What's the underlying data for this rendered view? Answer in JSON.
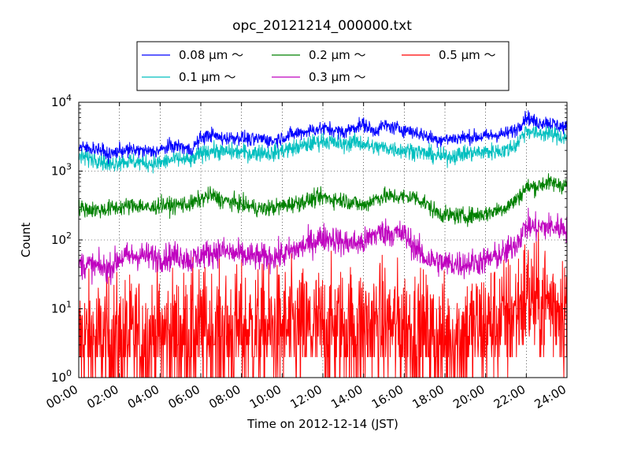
{
  "chart_data": {
    "type": "line",
    "title": "opc_20121214_000000.txt",
    "xlabel": "Time on 2012-12-14 (JST)",
    "ylabel": "Count",
    "x_ticks": [
      "00:00",
      "02:00",
      "04:00",
      "06:00",
      "08:00",
      "10:00",
      "12:00",
      "14:00",
      "16:00",
      "18:00",
      "20:00",
      "22:00",
      "24:00"
    ],
    "xlim_hours": [
      0,
      24
    ],
    "yscale": "log",
    "ylim": [
      1,
      10000
    ],
    "y_ticks": [
      {
        "base": "10",
        "exp": "0"
      },
      {
        "base": "10",
        "exp": "1"
      },
      {
        "base": "10",
        "exp": "2"
      },
      {
        "base": "10",
        "exp": "3"
      },
      {
        "base": "10",
        "exp": "4"
      }
    ],
    "grid": true,
    "legend_position": "top-center",
    "series": [
      {
        "name": "0.08 μm ～",
        "color": "#0000ff",
        "noise": 0.05,
        "hours": [
          0,
          1,
          1.5,
          2,
          3,
          3.5,
          4,
          4.5,
          5,
          5.5,
          6,
          6.5,
          7,
          8,
          8.5,
          9,
          9.5,
          10,
          11,
          12,
          12.5,
          13,
          13.5,
          14,
          14.5,
          15,
          16,
          16.5,
          17,
          17.5,
          18,
          19,
          20,
          21,
          21.5,
          22,
          22.5,
          23,
          24
        ],
        "values": [
          2200,
          2100,
          1700,
          2000,
          2000,
          1900,
          2000,
          2300,
          2300,
          2000,
          3000,
          3400,
          3000,
          3100,
          2800,
          3000,
          2700,
          3100,
          3700,
          4200,
          4000,
          3600,
          4300,
          4800,
          3800,
          4600,
          4000,
          3700,
          3300,
          2900,
          2900,
          3100,
          3200,
          3500,
          4000,
          6200,
          5000,
          5200,
          4200
        ]
      },
      {
        "name": "0.1 μm ～",
        "color": "#00bfbf",
        "noise": 0.06,
        "hours": [
          0,
          1,
          1.5,
          2,
          3,
          3.5,
          4,
          4.5,
          5,
          5.5,
          6,
          6.5,
          7,
          8,
          8.5,
          9,
          9.5,
          10,
          11,
          12,
          12.5,
          13,
          13.5,
          14,
          14.5,
          15,
          16,
          16.5,
          17,
          17.5,
          18,
          19,
          20,
          21,
          21.5,
          22,
          22.5,
          23,
          24
        ],
        "values": [
          1600,
          1500,
          1200,
          1400,
          1350,
          1300,
          1300,
          1450,
          1500,
          1400,
          1800,
          2000,
          1900,
          1900,
          1800,
          1900,
          1800,
          2000,
          2300,
          2800,
          2600,
          2400,
          2700,
          2500,
          2200,
          2200,
          2000,
          2000,
          1800,
          1700,
          1600,
          1800,
          1900,
          2000,
          2400,
          4000,
          3500,
          3600,
          3000
        ]
      },
      {
        "name": "0.2 μm ～",
        "color": "#008000",
        "noise": 0.06,
        "hours": [
          0,
          1,
          2,
          3,
          3.5,
          4,
          4.5,
          5,
          5.5,
          6,
          6.5,
          7,
          8,
          9,
          10,
          11,
          12,
          12.5,
          13,
          13.5,
          14,
          14.5,
          15,
          16,
          16.5,
          17,
          17.5,
          18,
          19,
          20,
          21,
          21.5,
          22,
          22.5,
          23,
          24
        ],
        "values": [
          290,
          270,
          300,
          320,
          280,
          330,
          310,
          330,
          330,
          390,
          450,
          380,
          330,
          280,
          310,
          360,
          420,
          390,
          380,
          350,
          310,
          390,
          430,
          420,
          420,
          350,
          260,
          230,
          220,
          240,
          300,
          380,
          580,
          600,
          680,
          620
        ]
      },
      {
        "name": "0.3 μm ～",
        "color": "#bf00bf",
        "noise": 0.1,
        "hours": [
          0,
          1,
          1.5,
          2,
          3,
          4,
          5,
          5.5,
          6,
          7,
          8,
          9,
          10,
          11,
          12,
          12.5,
          13,
          14,
          14.5,
          15,
          16,
          16.5,
          17,
          17.5,
          18,
          19,
          20,
          21,
          21.5,
          22,
          22.5,
          23,
          24
        ],
        "values": [
          45,
          40,
          38,
          55,
          60,
          55,
          60,
          50,
          60,
          70,
          60,
          55,
          60,
          80,
          110,
          105,
          90,
          90,
          120,
          130,
          120,
          80,
          55,
          50,
          45,
          45,
          50,
          65,
          90,
          160,
          150,
          155,
          150
        ]
      },
      {
        "name": "0.5 μm ～",
        "color": "#ff0000",
        "noise": 0.45,
        "hours": [
          0,
          2,
          4,
          6,
          8,
          10,
          12,
          14,
          16,
          17,
          18,
          19,
          20,
          21,
          21.5,
          22,
          22.5,
          23,
          24
        ],
        "values": [
          3.5,
          3.5,
          4,
          4.5,
          4.8,
          4.8,
          5,
          5.5,
          5.5,
          4,
          3.5,
          4.5,
          5.5,
          7,
          9,
          16,
          12,
          12,
          11
        ]
      }
    ]
  }
}
